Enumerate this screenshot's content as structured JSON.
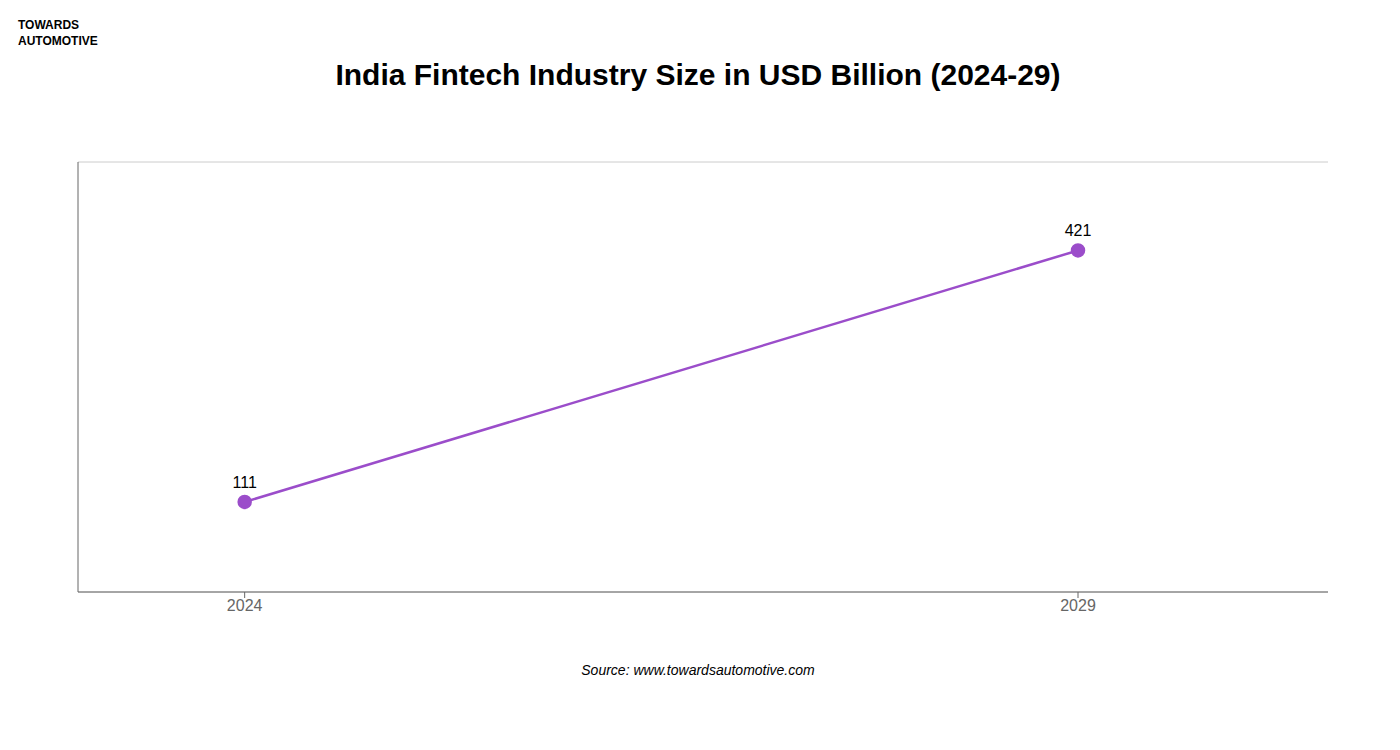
{
  "chart_data": {
    "type": "line",
    "title": "India Fintech Industry Size in USD Billion (2024-29)",
    "x": [
      2024,
      2029
    ],
    "values": [
      111,
      421
    ],
    "color": "#9b4dca",
    "marker": "circle",
    "xlim": [
      2023,
      2030.5
    ],
    "xticks": [
      2024,
      2029
    ],
    "ylim": [
      0,
      530
    ],
    "yticks": [
      0,
      100,
      200,
      300,
      400,
      500
    ],
    "grid": true,
    "data_labels": true,
    "tick_labels": "x",
    "annotations": [
      "TOWARDS",
      "AUTOMOTIVE",
      "Source: www.towardsautomotive.com"
    ]
  }
}
